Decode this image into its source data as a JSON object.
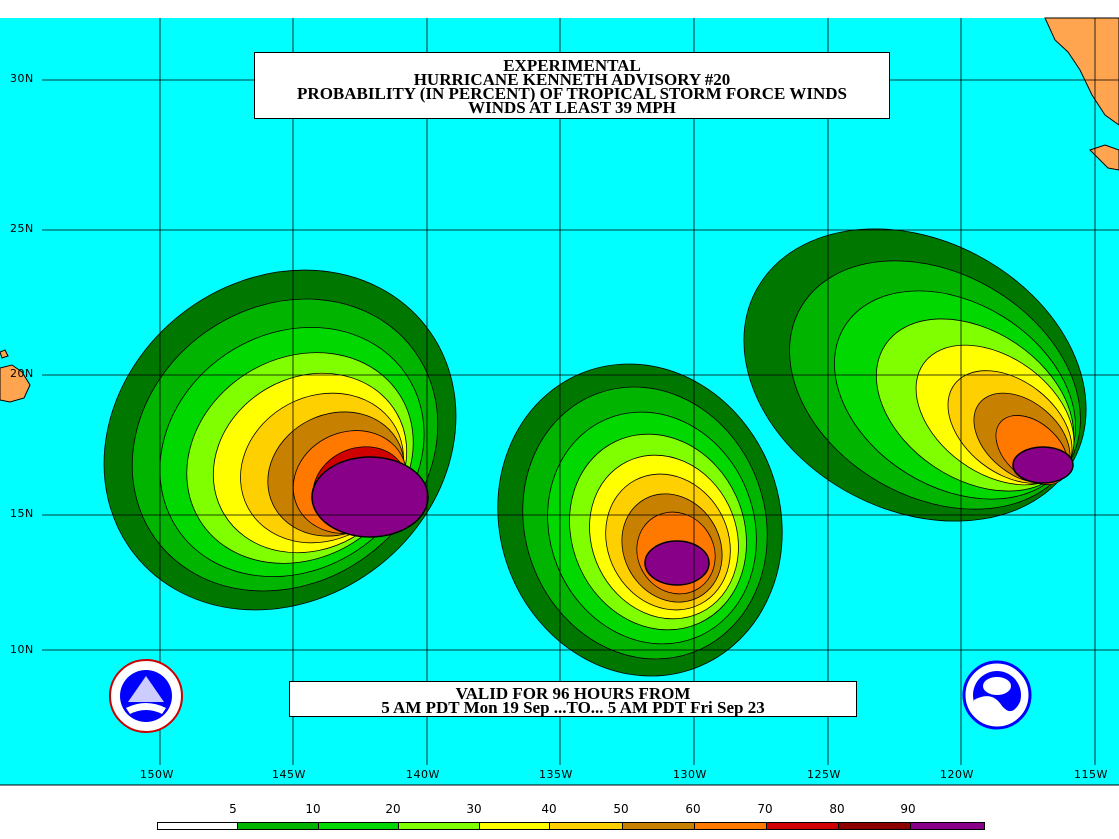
{
  "title": {
    "line1": "EXPERIMENTAL",
    "line2": "HURRICANE KENNETH ADVISORY #20",
    "line3": "PROBABILITY (IN PERCENT) OF TROPICAL STORM FORCE WINDS",
    "line4": "WINDS AT LEAST 39 MPH"
  },
  "valid": {
    "line1": "VALID FOR 96 HOURS FROM",
    "line2": "5 AM PDT Mon 19 Sep ...TO... 5 AM PDT Fri Sep 23"
  },
  "latitudes": [
    "30N",
    "25N",
    "20N",
    "15N",
    "10N"
  ],
  "longitudes": [
    "150W",
    "145W",
    "140W",
    "135W",
    "130W",
    "125W",
    "120W",
    "115W"
  ],
  "legend": {
    "labels": [
      "5",
      "10",
      "20",
      "30",
      "40",
      "50",
      "60",
      "70",
      "80",
      "90"
    ],
    "colors": [
      "#ffffff",
      "#007800",
      "#00b400",
      "#00d800",
      "#80ff00",
      "#ffff00",
      "#ffd000",
      "#c88000",
      "#ff7800",
      "#d00000",
      "#8c0000",
      "#880088"
    ]
  },
  "colors": {
    "ocean": "#00ffff",
    "land": "#ffa54f",
    "grid": "#000000"
  },
  "icons": {
    "left_logo": "nws-logo-icon",
    "right_logo": "noaa-logo-icon"
  }
}
